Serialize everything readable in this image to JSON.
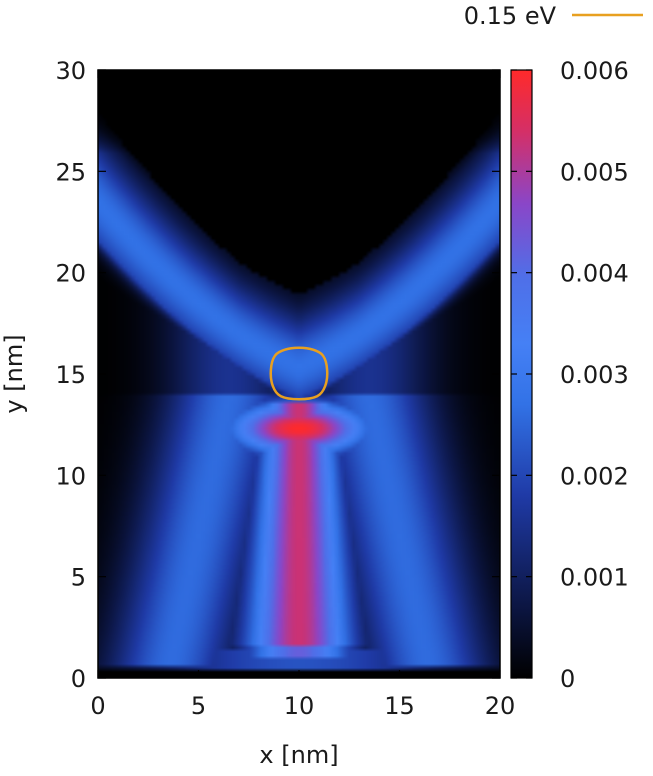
{
  "chart_data": {
    "type": "heatmap",
    "title": "",
    "xlabel": "x [nm]",
    "ylabel": "y [nm]",
    "xlim": [
      0,
      20
    ],
    "ylim": [
      0,
      30
    ],
    "x_ticks": [
      "0",
      "5",
      "10",
      "15",
      "20"
    ],
    "y_ticks": [
      "0",
      "5",
      "10",
      "15",
      "20",
      "25",
      "30"
    ],
    "colorbar": {
      "range": [
        0,
        0.006
      ],
      "ticks": [
        "0",
        "0.001",
        "0.002",
        "0.003",
        "0.004",
        "0.005",
        "0.006"
      ],
      "colors": [
        "#000000",
        "#1d2f8a",
        "#2f5fd6",
        "#3f82f2",
        "#4a6fe8",
        "#9a3fc0",
        "#e02c52",
        "#ff2a2a"
      ]
    },
    "grid": false,
    "legend": {
      "position": "top-right",
      "entries": [
        {
          "label": "0.15 eV",
          "color": "#e8a020"
        }
      ]
    },
    "contour": {
      "label": "0.15 eV",
      "color": "#e8a020",
      "points": [
        [
          10.0,
          16.3
        ],
        [
          10.7,
          16.2
        ],
        [
          11.2,
          15.9
        ],
        [
          11.4,
          15.2
        ],
        [
          11.3,
          14.4
        ],
        [
          10.9,
          13.9
        ],
        [
          10.0,
          13.75
        ],
        [
          9.1,
          13.9
        ],
        [
          8.7,
          14.4
        ],
        [
          8.6,
          15.2
        ],
        [
          8.8,
          15.9
        ],
        [
          9.3,
          16.2
        ]
      ]
    },
    "density_features": {
      "arm_peak_value": 0.0028,
      "central_peak_value": 0.006,
      "central_peak_location": [
        10,
        12.3
      ],
      "vertex_location": [
        10,
        13.8
      ],
      "stem_x_range": [
        8.5,
        11.5
      ],
      "stem_y_range": [
        1,
        13
      ]
    }
  }
}
